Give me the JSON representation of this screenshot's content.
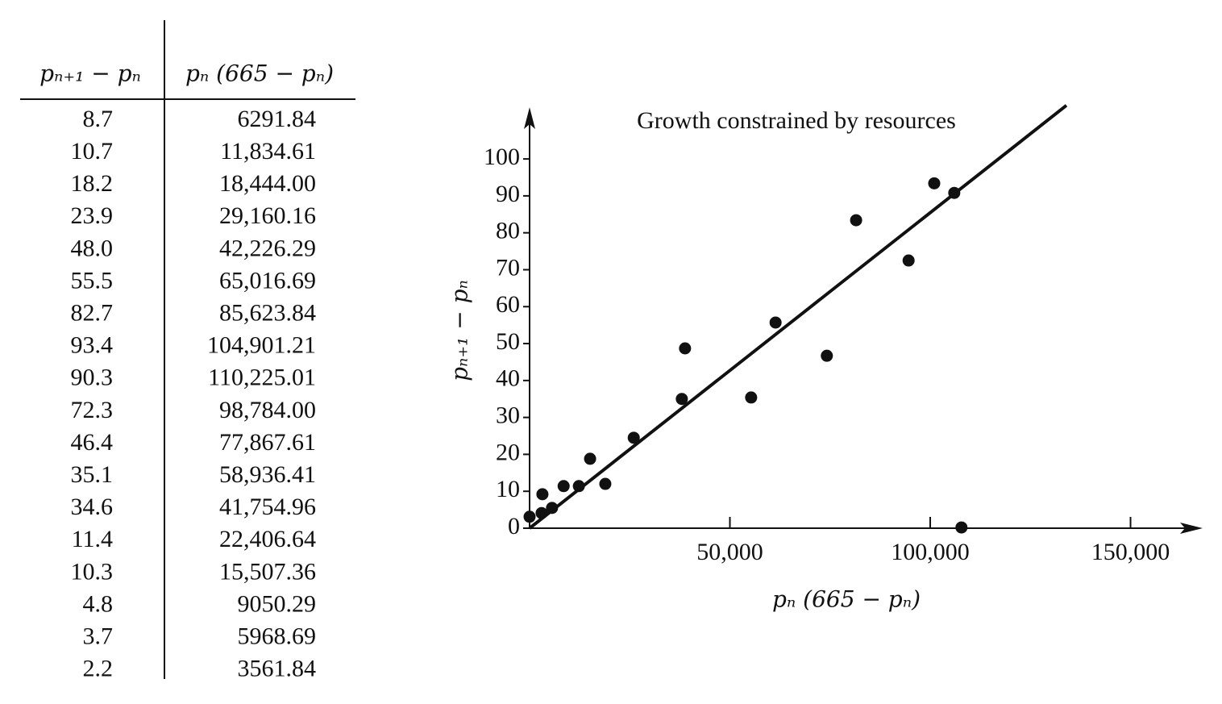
{
  "table": {
    "headers": [
      "pₙ₊₁ − pₙ",
      "pₙ (665 − pₙ)"
    ],
    "rows": [
      [
        "8.7",
        "6291.84"
      ],
      [
        "10.7",
        "11,834.61"
      ],
      [
        "18.2",
        "18,444.00"
      ],
      [
        "23.9",
        "29,160.16"
      ],
      [
        "48.0",
        "42,226.29"
      ],
      [
        "55.5",
        "65,016.69"
      ],
      [
        "82.7",
        "85,623.84"
      ],
      [
        "93.4",
        "104,901.21"
      ],
      [
        "90.3",
        "110,225.01"
      ],
      [
        "72.3",
        "98,784.00"
      ],
      [
        "46.4",
        "77,867.61"
      ],
      [
        "35.1",
        "58,936.41"
      ],
      [
        "34.6",
        "41,754.96"
      ],
      [
        "11.4",
        "22,406.64"
      ],
      [
        "10.3",
        "15,507.36"
      ],
      [
        "4.8",
        "9050.29"
      ],
      [
        "3.7",
        "5968.69"
      ],
      [
        "2.2",
        "3561.84"
      ]
    ]
  },
  "chart_data": {
    "type": "scatter",
    "title": "Growth constrained by resources",
    "x_label": "pₙ (665 − pₙ)",
    "y_label": "pₙ₊₁ − pₙ",
    "x": [
      0,
      3000,
      3200,
      5600,
      8500,
      12300,
      15100,
      18900,
      26000,
      38000,
      38800,
      55300,
      61400,
      74200,
      81500,
      94600,
      101000,
      106000,
      107800
    ],
    "values": [
      3.1,
      4.1,
      9.2,
      5.5,
      11.4,
      11.4,
      18.8,
      12,
      24.5,
      35,
      48.7,
      35.4,
      55.7,
      46.7,
      83.4,
      72.5,
      93.4,
      90.8,
      0.2
    ],
    "color": "#111111",
    "fit_line": {
      "x": [
        0,
        134000
      ],
      "y": [
        0,
        114.5
      ]
    },
    "xlim": [
      0,
      167600
    ],
    "ylim": [
      0,
      114
    ],
    "xticks": [
      {
        "value": 50000,
        "label": "50,000"
      },
      {
        "value": 100000,
        "label": "100,000"
      },
      {
        "value": 150000,
        "label": "150,000"
      }
    ],
    "yticks": [
      0,
      10,
      20,
      30,
      40,
      50,
      60,
      70,
      80,
      90,
      100
    ]
  }
}
